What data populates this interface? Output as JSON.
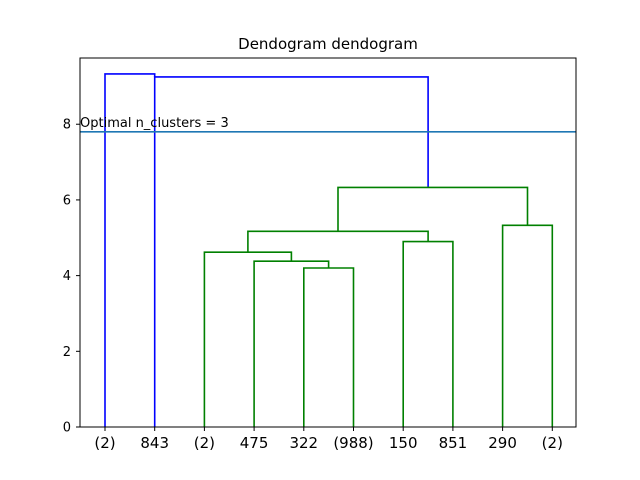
{
  "chart_data": {
    "type": "dendrogram",
    "title": "Dendogram dendogram",
    "xlabel": "",
    "ylabel": "",
    "ylim": [
      0,
      9.75
    ],
    "yticks": [
      0,
      2,
      4,
      6,
      8
    ],
    "leaf_labels": [
      "(2)",
      "843",
      "(2)",
      "475",
      "322",
      "(988)",
      "150",
      "851",
      "290",
      "(2)"
    ],
    "threshold": {
      "value": 7.8,
      "label": "Optimal n_clusters = 3",
      "color": "#1f77b4"
    },
    "links": [
      {
        "left": 0,
        "left_height": 0,
        "right": 1,
        "right_height": 9.25,
        "height": 9.33,
        "color": "#0000ff"
      },
      {
        "left": 1,
        "left_height": 0,
        "right": 6.5,
        "right_height": 6.33,
        "height": 9.25,
        "color": "#0000ff"
      },
      {
        "left": 4,
        "left_height": 0,
        "right": 5,
        "right_height": 0,
        "height": 4.2,
        "color": "#008000"
      },
      {
        "left": 3,
        "left_height": 0,
        "right": 4.5,
        "right_height": 4.2,
        "height": 4.38,
        "color": "#008000"
      },
      {
        "left": 2,
        "left_height": 0,
        "right": 3.75,
        "right_height": 4.38,
        "height": 4.62,
        "color": "#008000"
      },
      {
        "left": 6,
        "left_height": 0,
        "right": 7,
        "right_height": 0,
        "height": 4.9,
        "color": "#008000"
      },
      {
        "left": 2.875,
        "left_height": 4.62,
        "right": 6.5,
        "right_height": 4.9,
        "height": 5.17,
        "color": "#008000"
      },
      {
        "left": 8,
        "left_height": 0,
        "right": 9,
        "right_height": 0,
        "height": 5.33,
        "color": "#008000"
      },
      {
        "left": 4.6875,
        "left_height": 5.17,
        "right": 8.5,
        "right_height": 5.33,
        "height": 6.33,
        "color": "#008000"
      }
    ]
  }
}
